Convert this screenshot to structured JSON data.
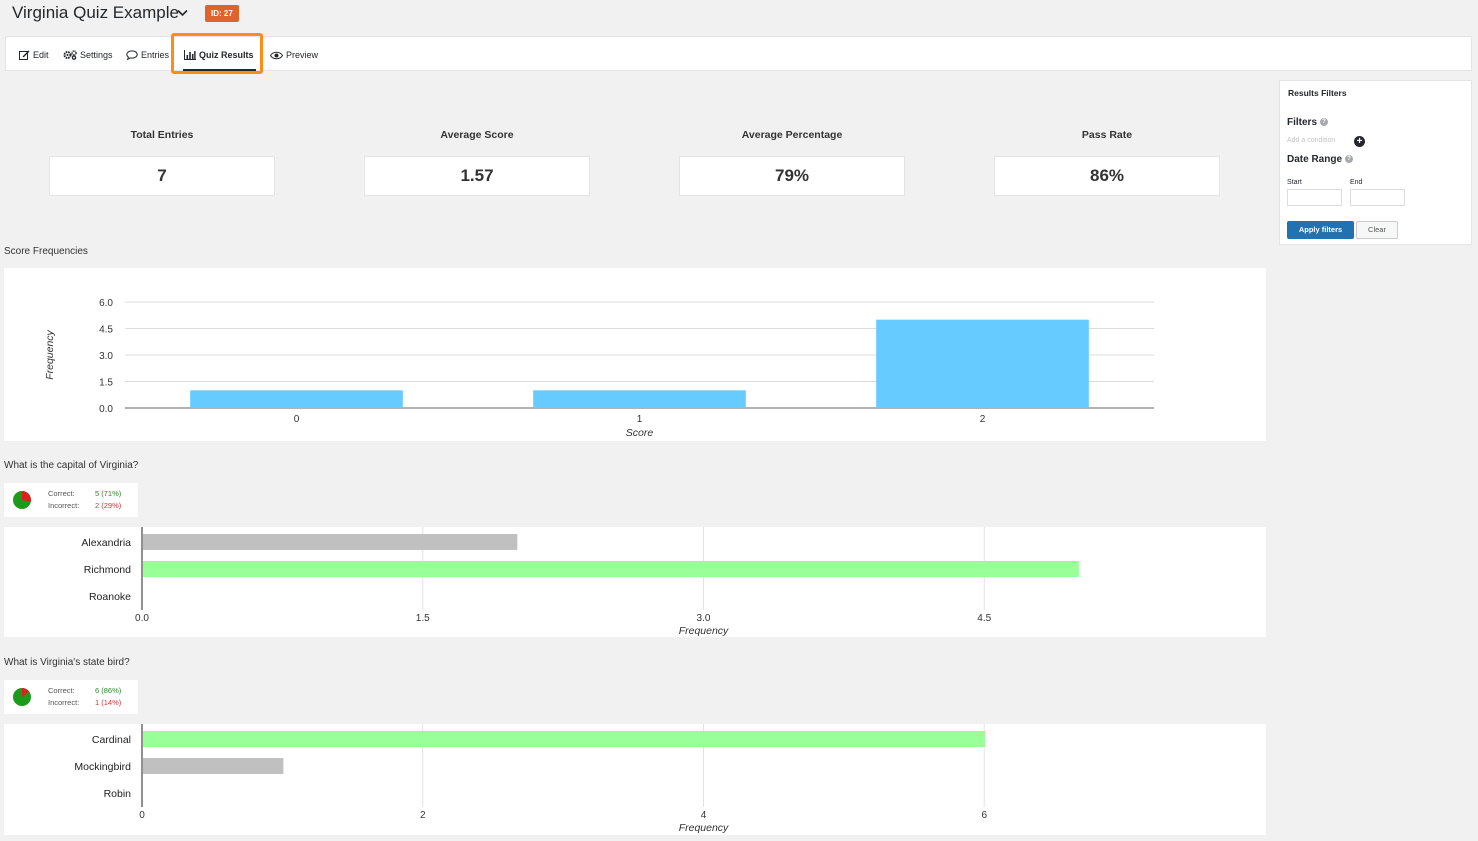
{
  "header": {
    "title": "Virginia Quiz Example",
    "id_badge": "ID: 27"
  },
  "toolbar": {
    "edit": "Edit",
    "settings": "Settings",
    "entries": "Entries",
    "quiz_results": "Quiz Results",
    "preview": "Preview",
    "active_tab": "Quiz Results"
  },
  "stats": [
    {
      "label": "Total Entries",
      "value": "7"
    },
    {
      "label": "Average Score",
      "value": "1.57"
    },
    {
      "label": "Average Percentage",
      "value": "79%"
    },
    {
      "label": "Pass Rate",
      "value": "86%"
    }
  ],
  "filters": {
    "title": "Results Filters",
    "filters_label": "Filters",
    "add_condition": "Add a condition",
    "date_range_label": "Date Range",
    "start_label": "Start",
    "end_label": "End",
    "start_value": "",
    "end_value": "",
    "apply_label": "Apply filters",
    "clear_label": "Clear"
  },
  "score_section_title": "Score Frequencies",
  "questions": [
    {
      "title": "What is the capital of Virginia?",
      "correct_label": "Correct:",
      "correct_value": "5 (71%)",
      "incorrect_label": "Incorrect:",
      "incorrect_value": "2 (29%)"
    },
    {
      "title": "What is Virginia's state bird?",
      "correct_label": "Correct:",
      "correct_value": "6 (86%)",
      "incorrect_label": "Incorrect:",
      "incorrect_value": "1 (14%)"
    }
  ],
  "colors": {
    "accent": "#e0632a",
    "highlight": "#ff8c14",
    "score_bar": "#66ccff",
    "correct_bar": "#99ff99",
    "incorrect_bar": "#c0c0c0",
    "pie_correct": "#1a9c1a",
    "pie_incorrect": "#e02020",
    "button": "#2271b1"
  },
  "chart_data": [
    {
      "type": "bar",
      "orientation": "vertical",
      "categories": [
        "0",
        "1",
        "2"
      ],
      "values": [
        1,
        1,
        5
      ],
      "title": "",
      "xlabel": "Score",
      "ylabel": "Frequency",
      "ylim": [
        0,
        6
      ],
      "yticks": [
        "0.0",
        "1.5",
        "3.0",
        "4.5",
        "6.0"
      ],
      "grid": true
    },
    {
      "type": "bar",
      "orientation": "horizontal",
      "categories": [
        "Alexandria",
        "Richmond",
        "Roanoke"
      ],
      "values": [
        2,
        5,
        0
      ],
      "correct": [
        false,
        true,
        false
      ],
      "xlabel": "Frequency",
      "xlim": [
        0,
        6
      ],
      "xticks": [
        "0.0",
        "1.5",
        "3.0",
        "4.5"
      ],
      "grid": true
    },
    {
      "type": "bar",
      "orientation": "horizontal",
      "categories": [
        "Cardinal",
        "Mockingbird",
        "Robin"
      ],
      "values": [
        6,
        1,
        0
      ],
      "correct": [
        true,
        false,
        false
      ],
      "xlabel": "Frequency",
      "xlim": [
        0,
        8
      ],
      "xticks": [
        "0",
        "2",
        "4",
        "6"
      ],
      "grid": true
    },
    {
      "type": "pie",
      "labels": [
        "Correct",
        "Incorrect"
      ],
      "values": [
        5,
        2
      ]
    },
    {
      "type": "pie",
      "labels": [
        "Correct",
        "Incorrect"
      ],
      "values": [
        6,
        1
      ]
    }
  ]
}
